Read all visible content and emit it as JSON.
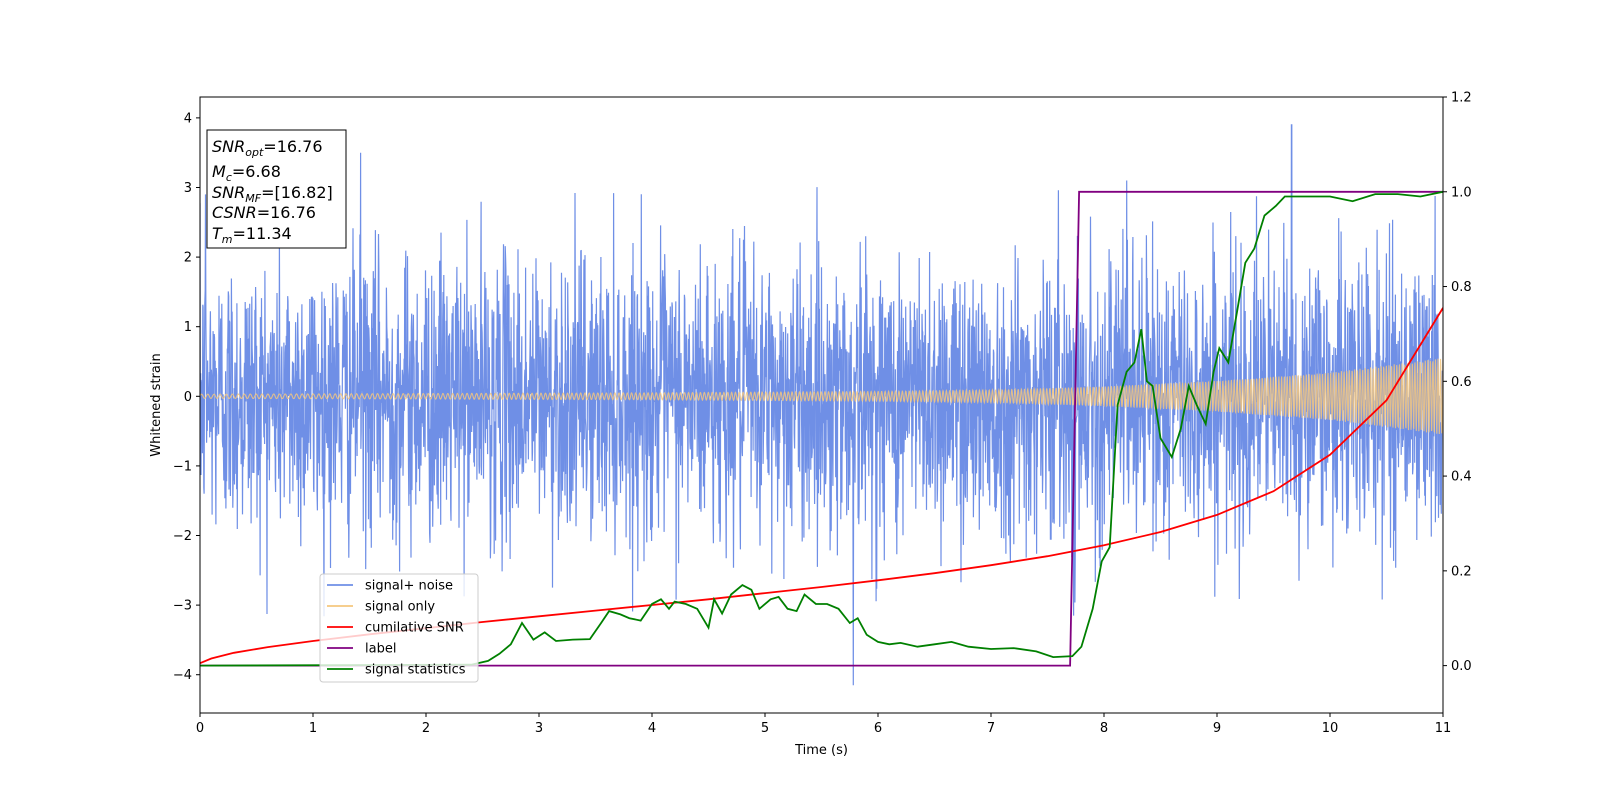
{
  "chart_data": {
    "type": "line",
    "title": "",
    "xlabel": "Time (s)",
    "ylabel": "Whitened strain",
    "y2label": "",
    "xlim": [
      0,
      11
    ],
    "ylim": [
      -4.55,
      4.3
    ],
    "y2lim": [
      -0.1,
      1.2
    ],
    "x_ticks": [
      "0",
      "1",
      "2",
      "3",
      "4",
      "5",
      "6",
      "7",
      "8",
      "9",
      "10",
      "11"
    ],
    "y_ticks": [
      "−4",
      "−3",
      "−2",
      "−1",
      "0",
      "1",
      "2",
      "3",
      "4"
    ],
    "y2_ticks": [
      "0.0",
      "0.2",
      "0.4",
      "0.6",
      "0.8",
      "1.0",
      "1.2"
    ],
    "grid": false,
    "legend_position": "lower-left",
    "info_box": {
      "lines": [
        {
          "sym": "SNR",
          "sub": "opt",
          "val": "=16.76"
        },
        {
          "sym": "M",
          "sub": "c",
          "val": "=6.68"
        },
        {
          "sym": "SNR",
          "sub": "MF",
          "val": "=[16.82]"
        },
        {
          "sym": "CSNR",
          "sub": "",
          "val": "=16.76"
        },
        {
          "sym": "T",
          "sub": "m",
          "val": "=11.34"
        }
      ]
    },
    "series": [
      {
        "name": "signal+ noise",
        "axis": "left",
        "color": "#6f8fe6",
        "kind": "noise",
        "band": 1.0,
        "peaks": [
          [
            0.05,
            2.9
          ],
          [
            1.42,
            3.5
          ],
          [
            5.78,
            -4.15
          ],
          [
            8.2,
            3.1
          ],
          [
            9.66,
            3.9
          ],
          [
            7.73,
            -3.15
          ]
        ]
      },
      {
        "name": "signal only",
        "axis": "left",
        "color": "#f5c77e",
        "kind": "chirp",
        "envelope": [
          [
            0,
            0.03
          ],
          [
            2,
            0.04
          ],
          [
            4,
            0.05
          ],
          [
            6,
            0.07
          ],
          [
            7,
            0.09
          ],
          [
            8,
            0.14
          ],
          [
            9,
            0.22
          ],
          [
            10,
            0.34
          ],
          [
            11,
            0.55
          ]
        ]
      },
      {
        "name": "cumilative SNR",
        "axis": "right",
        "color": "#ff0000",
        "points": [
          [
            0,
            0.005
          ],
          [
            0.1,
            0.015
          ],
          [
            0.3,
            0.027
          ],
          [
            0.6,
            0.039
          ],
          [
            1,
            0.052
          ],
          [
            1.5,
            0.066
          ],
          [
            2,
            0.079
          ],
          [
            2.5,
            0.092
          ],
          [
            3,
            0.104
          ],
          [
            3.5,
            0.116
          ],
          [
            4,
            0.128
          ],
          [
            4.5,
            0.14
          ],
          [
            5,
            0.153
          ],
          [
            5.5,
            0.166
          ],
          [
            6,
            0.18
          ],
          [
            6.5,
            0.195
          ],
          [
            7,
            0.212
          ],
          [
            7.5,
            0.231
          ],
          [
            8,
            0.254
          ],
          [
            8.5,
            0.282
          ],
          [
            9,
            0.318
          ],
          [
            9.5,
            0.368
          ],
          [
            10,
            0.445
          ],
          [
            10.5,
            0.56
          ],
          [
            11,
            0.755
          ]
        ]
      },
      {
        "name": "label",
        "axis": "right",
        "color": "#800080",
        "points": [
          [
            0,
            0
          ],
          [
            7.7,
            0
          ],
          [
            7.78,
            1
          ],
          [
            11,
            1
          ]
        ]
      },
      {
        "name": "signal statistics",
        "axis": "right",
        "color": "#008000",
        "points": [
          [
            0,
            0
          ],
          [
            2.4,
            0.002
          ],
          [
            2.55,
            0.01
          ],
          [
            2.65,
            0.025
          ],
          [
            2.75,
            0.045
          ],
          [
            2.85,
            0.09
          ],
          [
            2.95,
            0.055
          ],
          [
            3.05,
            0.07
          ],
          [
            3.15,
            0.052
          ],
          [
            3.3,
            0.055
          ],
          [
            3.45,
            0.056
          ],
          [
            3.55,
            0.09
          ],
          [
            3.62,
            0.115
          ],
          [
            3.72,
            0.108
          ],
          [
            3.8,
            0.1
          ],
          [
            3.9,
            0.095
          ],
          [
            4.0,
            0.13
          ],
          [
            4.08,
            0.14
          ],
          [
            4.15,
            0.12
          ],
          [
            4.2,
            0.135
          ],
          [
            4.3,
            0.13
          ],
          [
            4.4,
            0.12
          ],
          [
            4.5,
            0.08
          ],
          [
            4.55,
            0.14
          ],
          [
            4.62,
            0.11
          ],
          [
            4.7,
            0.15
          ],
          [
            4.8,
            0.17
          ],
          [
            4.88,
            0.16
          ],
          [
            4.95,
            0.12
          ],
          [
            5.05,
            0.14
          ],
          [
            5.12,
            0.145
          ],
          [
            5.2,
            0.12
          ],
          [
            5.28,
            0.115
          ],
          [
            5.35,
            0.15
          ],
          [
            5.45,
            0.13
          ],
          [
            5.55,
            0.13
          ],
          [
            5.65,
            0.12
          ],
          [
            5.75,
            0.09
          ],
          [
            5.82,
            0.1
          ],
          [
            5.9,
            0.065
          ],
          [
            6.0,
            0.05
          ],
          [
            6.1,
            0.045
          ],
          [
            6.2,
            0.048
          ],
          [
            6.35,
            0.04
          ],
          [
            6.5,
            0.045
          ],
          [
            6.65,
            0.05
          ],
          [
            6.8,
            0.04
          ],
          [
            7.0,
            0.035
          ],
          [
            7.2,
            0.037
          ],
          [
            7.4,
            0.03
          ],
          [
            7.55,
            0.018
          ],
          [
            7.72,
            0.02
          ],
          [
            7.8,
            0.04
          ],
          [
            7.9,
            0.12
          ],
          [
            7.98,
            0.22
          ],
          [
            8.05,
            0.25
          ],
          [
            8.12,
            0.55
          ],
          [
            8.2,
            0.62
          ],
          [
            8.27,
            0.64
          ],
          [
            8.33,
            0.71
          ],
          [
            8.38,
            0.6
          ],
          [
            8.43,
            0.59
          ],
          [
            8.5,
            0.48
          ],
          [
            8.6,
            0.44
          ],
          [
            8.68,
            0.5
          ],
          [
            8.75,
            0.59
          ],
          [
            8.82,
            0.55
          ],
          [
            8.9,
            0.51
          ],
          [
            8.97,
            0.62
          ],
          [
            9.02,
            0.67
          ],
          [
            9.1,
            0.64
          ],
          [
            9.18,
            0.75
          ],
          [
            9.25,
            0.85
          ],
          [
            9.33,
            0.88
          ],
          [
            9.42,
            0.95
          ],
          [
            9.52,
            0.97
          ],
          [
            9.6,
            0.99
          ],
          [
            9.8,
            0.99
          ],
          [
            10.0,
            0.99
          ],
          [
            10.2,
            0.98
          ],
          [
            10.4,
            0.995
          ],
          [
            10.6,
            0.995
          ],
          [
            10.8,
            0.99
          ],
          [
            11,
            1.0
          ]
        ]
      }
    ]
  }
}
